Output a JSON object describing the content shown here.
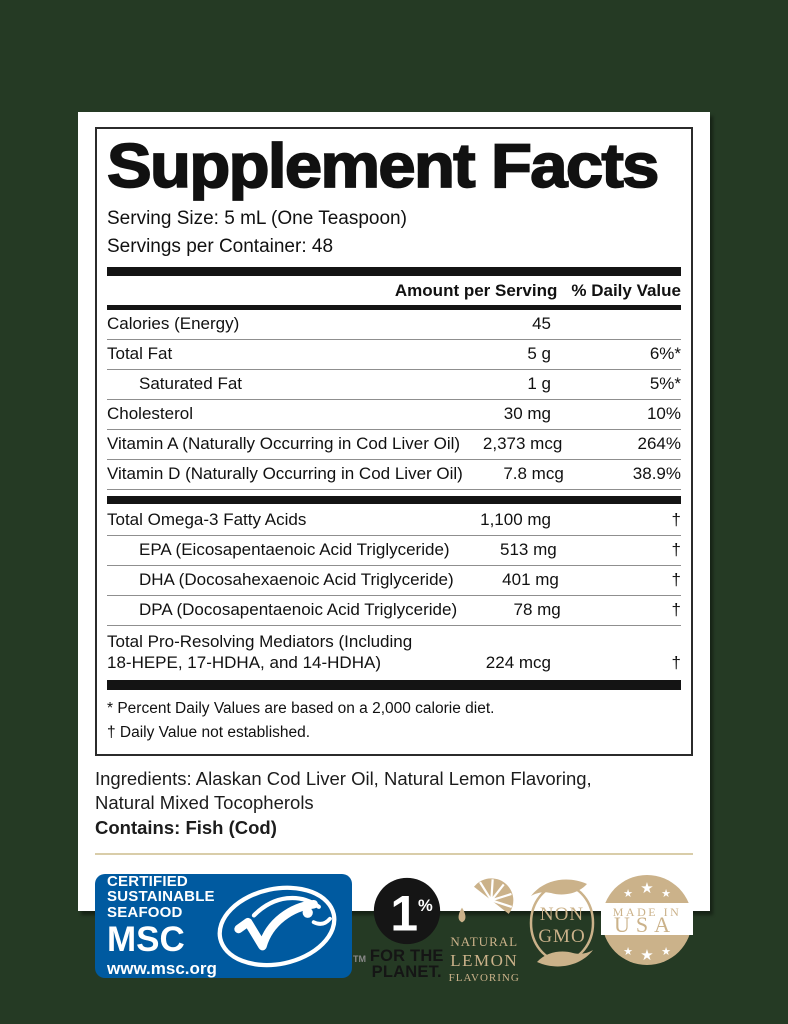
{
  "colors": {
    "background_green": "#253a24",
    "label_white": "#ffffff",
    "text_black": "#111111",
    "msc_blue": "#005aa0",
    "badge_tan": "#cbb28a",
    "divider_tan": "#d9cda9"
  },
  "facts_table": {
    "title": "Supplement Facts",
    "serving_size": "Serving Size: 5 mL (One Teaspoon)",
    "servings_per_container": "Servings per Container: 48",
    "columns": {
      "amount": "Amount per Serving",
      "daily_value": "% Daily Value"
    },
    "main_rows": [
      {
        "name": "Calories (Energy)",
        "amount": "45",
        "dv": ""
      },
      {
        "name": "Total Fat",
        "amount": "5 g",
        "dv": "6%*"
      },
      {
        "name": "Saturated Fat",
        "amount": "1 g",
        "dv": "5%*",
        "indent": true
      },
      {
        "name": "Cholesterol",
        "amount": "30 mg",
        "dv": "10%"
      },
      {
        "name": "Vitamin A (Naturally Occurring in Cod Liver Oil)",
        "amount": "2,373 mcg",
        "dv": "264%"
      },
      {
        "name": "Vitamin D (Naturally Occurring in Cod Liver Oil)",
        "amount": "7.8 mcg",
        "dv": "38.9%"
      }
    ],
    "omega_rows": [
      {
        "name": "Total Omega-3 Fatty Acids",
        "amount": "1,100 mg",
        "dv": "†"
      },
      {
        "name": "EPA (Eicosapentaenoic Acid Triglyceride)",
        "amount": "513 mg",
        "dv": "†",
        "indent": true
      },
      {
        "name": "DHA (Docosahexaenoic Acid Triglyceride)",
        "amount": "401 mg",
        "dv": "†",
        "indent": true
      },
      {
        "name": "DPA (Docosapentaenoic Acid Triglyceride)",
        "amount": "78 mg",
        "dv": "†",
        "indent": true
      },
      {
        "name": "Total Pro-Resolving Mediators (Including",
        "name2": "18-HEPE, 17-HDHA, and 14-HDHA)",
        "amount": "224 mcg",
        "dv": "†"
      }
    ],
    "footnotes": [
      "* Percent Daily Values are based on a 2,000 calorie diet.",
      "† Daily Value not established."
    ]
  },
  "ingredients": {
    "line1": "Ingredients: Alaskan Cod Liver Oil, Natural Lemon Flavoring,",
    "line2": "Natural Mixed Tocopherols",
    "contains": "Contains: Fish (Cod)"
  },
  "badges": {
    "msc": {
      "cert_lines": [
        "CERTIFIED",
        "SUSTAINABLE",
        "SEAFOOD"
      ],
      "name": "MSC",
      "url": "www.msc.org",
      "tm": "TM"
    },
    "one_percent_planet": {
      "number": "1",
      "percent": "%",
      "line1": "FOR THE",
      "line2": "PLANET."
    },
    "natural_lemon": {
      "lines": [
        "NATURAL",
        "LEMON",
        "FLAVORING"
      ]
    },
    "non_gmo": {
      "line1": "NON",
      "line2": "GMO"
    },
    "made_in_usa": {
      "line1": "MADE IN",
      "line2": "USA",
      "star": "★"
    }
  }
}
